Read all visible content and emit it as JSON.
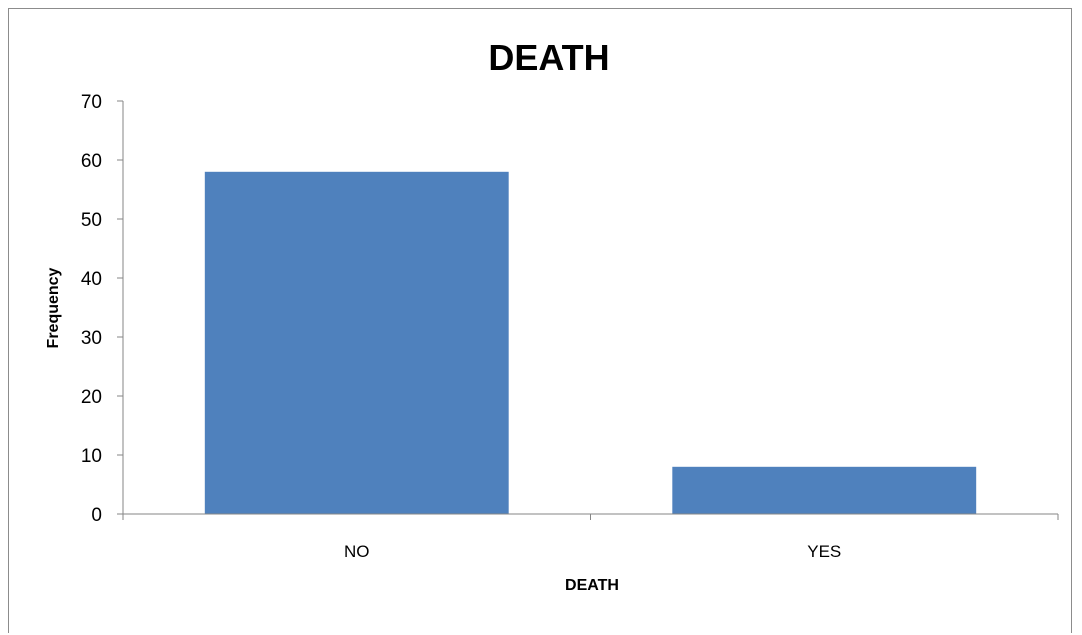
{
  "chart_data": {
    "type": "bar",
    "title": "DEATH",
    "xlabel": "DEATH",
    "ylabel": "Frequency",
    "categories": [
      "NO",
      "YES"
    ],
    "values": [
      58,
      8
    ],
    "ylim": [
      0,
      70
    ],
    "yticks": [
      "0",
      "10",
      "20",
      "30",
      "40",
      "50",
      "60",
      "70"
    ],
    "grid": false,
    "legend": "none",
    "colors": {
      "bar": "#4f81bd",
      "axis": "#868686"
    }
  }
}
